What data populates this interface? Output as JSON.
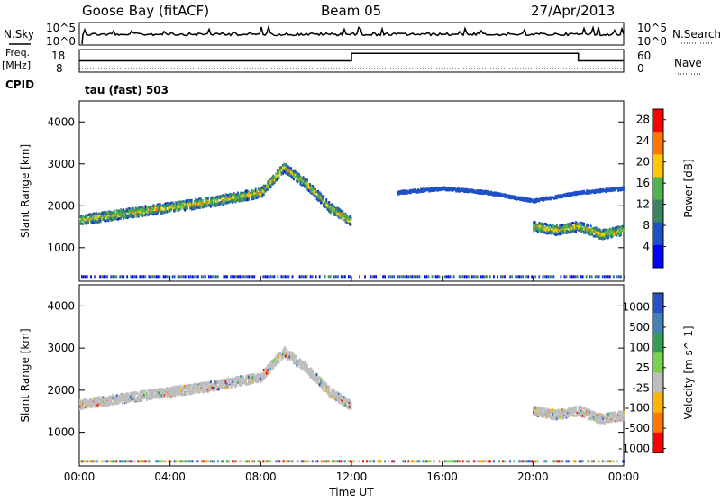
{
  "header": {
    "station": "Goose Bay (fitACF)",
    "beam": "Beam 05",
    "date": "27/Apr/2013"
  },
  "noise_panel": {
    "left_label": "N.Sky",
    "right_label": "N.Search",
    "left_ticks": [
      "10^5",
      "10^0"
    ],
    "right_ticks": [
      "10^5",
      "10^0"
    ]
  },
  "freq_panel": {
    "left_label_1": "Freq.",
    "left_label_2": "[MHz]",
    "right_label": "Nave",
    "left_ticks": [
      "18",
      "8"
    ],
    "right_ticks": [
      "60",
      "0"
    ],
    "nave_values": {
      "x_hours": [
        0,
        12,
        12,
        22,
        22,
        24
      ],
      "values": [
        30,
        30,
        50,
        50,
        30,
        30
      ]
    }
  },
  "cpid": {
    "label": "CPID",
    "value": "tau (fast) 503"
  },
  "x_axis": {
    "label": "Time UT",
    "ticks": [
      "00:00",
      "04:00",
      "08:00",
      "12:00",
      "16:00",
      "20:00",
      "00:00"
    ],
    "range_hours": [
      0,
      24
    ]
  },
  "chart_data": [
    {
      "type": "heatmap",
      "title": "",
      "xlabel": "Time UT",
      "ylabel": "Slant Range [km]",
      "ylim": [
        200,
        4500
      ],
      "yticks": [
        "1000",
        "2000",
        "3000",
        "4000"
      ],
      "colorbar": {
        "label": "Power [dB]",
        "ticks": [
          "4",
          "8",
          "12",
          "16",
          "20",
          "24",
          "28"
        ],
        "range": [
          0,
          30
        ],
        "colors": [
          "#0000ff",
          "#1e50c8",
          "#3c8264",
          "#50b450",
          "#ffc800",
          "#ff7800",
          "#ff0000"
        ]
      },
      "echo_bands": [
        {
          "x_hours": [
            0,
            2,
            4,
            6,
            8,
            9,
            10,
            11,
            12
          ],
          "slant_range_km": [
            1650,
            1800,
            1950,
            2100,
            2300,
            2900,
            2500,
            1950,
            1600
          ],
          "power_db": 14
        },
        {
          "x_hours": [
            20,
            21,
            22,
            23,
            24
          ],
          "slant_range_km": [
            1500,
            1400,
            1500,
            1300,
            1400
          ],
          "power_db": 18
        },
        {
          "x_hours": [
            14,
            16,
            18,
            20,
            22,
            24
          ],
          "slant_range_km": [
            2300,
            2400,
            2300,
            2100,
            2300,
            2400
          ],
          "power_db": 6
        }
      ]
    },
    {
      "type": "heatmap",
      "title": "",
      "xlabel": "Time UT",
      "ylabel": "Slant Range [km]",
      "ylim": [
        200,
        4500
      ],
      "yticks": [
        "1000",
        "2000",
        "3000",
        "4000"
      ],
      "colorbar": {
        "label": "Velocity [m s^-1]",
        "ticks": [
          "1000",
          "500",
          "100",
          "25",
          "-25",
          "-100",
          "-500",
          "-1000"
        ],
        "colors": [
          "#2850c8",
          "#4682b4",
          "#32a050",
          "#78d250",
          "#bebebe",
          "#ffb400",
          "#ff7800",
          "#ff0000"
        ]
      },
      "echo_bands": [
        {
          "x_hours": [
            0,
            2,
            4,
            6,
            8,
            9,
            10,
            11,
            12
          ],
          "slant_range_km": [
            1650,
            1800,
            1950,
            2100,
            2300,
            2900,
            2500,
            1950,
            1600
          ],
          "velocity_ms": 0
        },
        {
          "x_hours": [
            20,
            21,
            22,
            23,
            24
          ],
          "slant_range_km": [
            1500,
            1400,
            1500,
            1300,
            1400
          ],
          "velocity_ms": 0
        }
      ]
    }
  ]
}
